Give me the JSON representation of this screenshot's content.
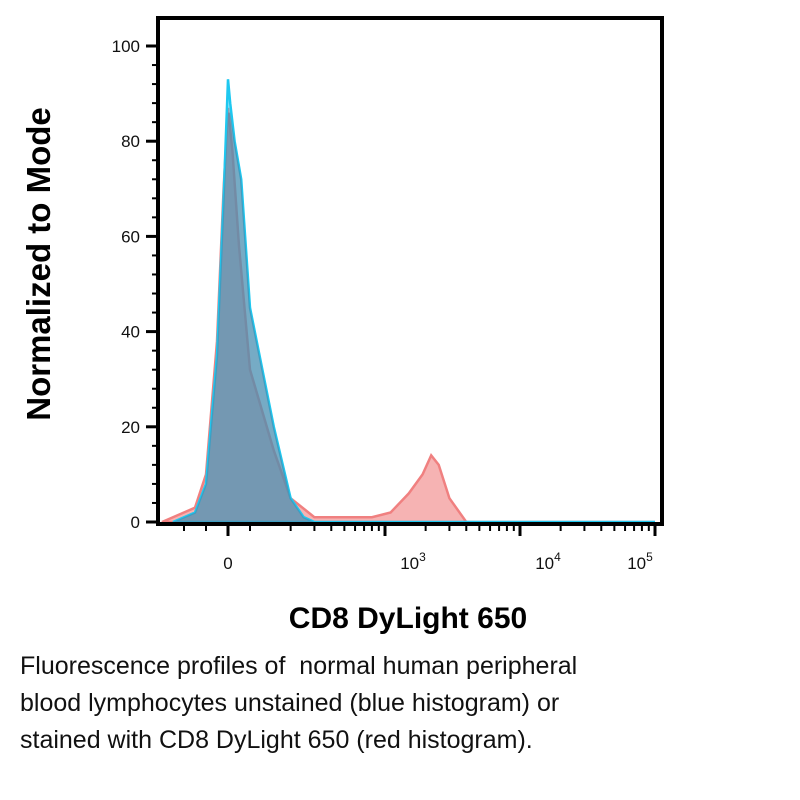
{
  "chart_data": {
    "type": "area",
    "xlabel": "CD8 DyLight 650",
    "ylabel": "Normalized to Mode",
    "ylim": [
      0,
      100
    ],
    "yticks": [
      "0",
      "20",
      "40",
      "60",
      "80",
      "100"
    ],
    "xticks": [
      {
        "base": "0",
        "exp": ""
      },
      {
        "base": "10",
        "exp": "3"
      },
      {
        "base": "10",
        "exp": "4"
      },
      {
        "base": "10",
        "exp": "5"
      }
    ],
    "x_scale": "biexponential",
    "series": [
      {
        "color": "#f08080",
        "points": [
          [
            -300,
            0
          ],
          [
            -150,
            3
          ],
          [
            -100,
            10
          ],
          [
            -50,
            38
          ],
          [
            -20,
            70
          ],
          [
            0,
            87
          ],
          [
            20,
            78
          ],
          [
            50,
            58
          ],
          [
            100,
            32
          ],
          [
            150,
            15
          ],
          [
            200,
            5
          ],
          [
            300,
            1
          ],
          [
            500,
            1
          ],
          [
            800,
            1
          ],
          [
            1100,
            2
          ],
          [
            1500,
            6
          ],
          [
            1900,
            10
          ],
          [
            2200,
            14
          ],
          [
            2500,
            12
          ],
          [
            3000,
            5
          ],
          [
            4000,
            0
          ],
          [
            100000,
            0
          ]
        ]
      },
      {
        "color": "#1ec8f0",
        "points": [
          [
            -250,
            0
          ],
          [
            -150,
            2
          ],
          [
            -100,
            8
          ],
          [
            -50,
            35
          ],
          [
            -20,
            68
          ],
          [
            0,
            93
          ],
          [
            10,
            88
          ],
          [
            30,
            80
          ],
          [
            60,
            72
          ],
          [
            100,
            45
          ],
          [
            150,
            20
          ],
          [
            200,
            5
          ],
          [
            250,
            1
          ],
          [
            300,
            0
          ],
          [
            100000,
            0
          ]
        ]
      }
    ]
  },
  "caption": {
    "lines": [
      "Fluorescence profiles of  normal human peripheral",
      "blood lymphocytes unstained (blue histogram) or",
      "stained with CD8 DyLight 650 (red histogram)."
    ]
  }
}
